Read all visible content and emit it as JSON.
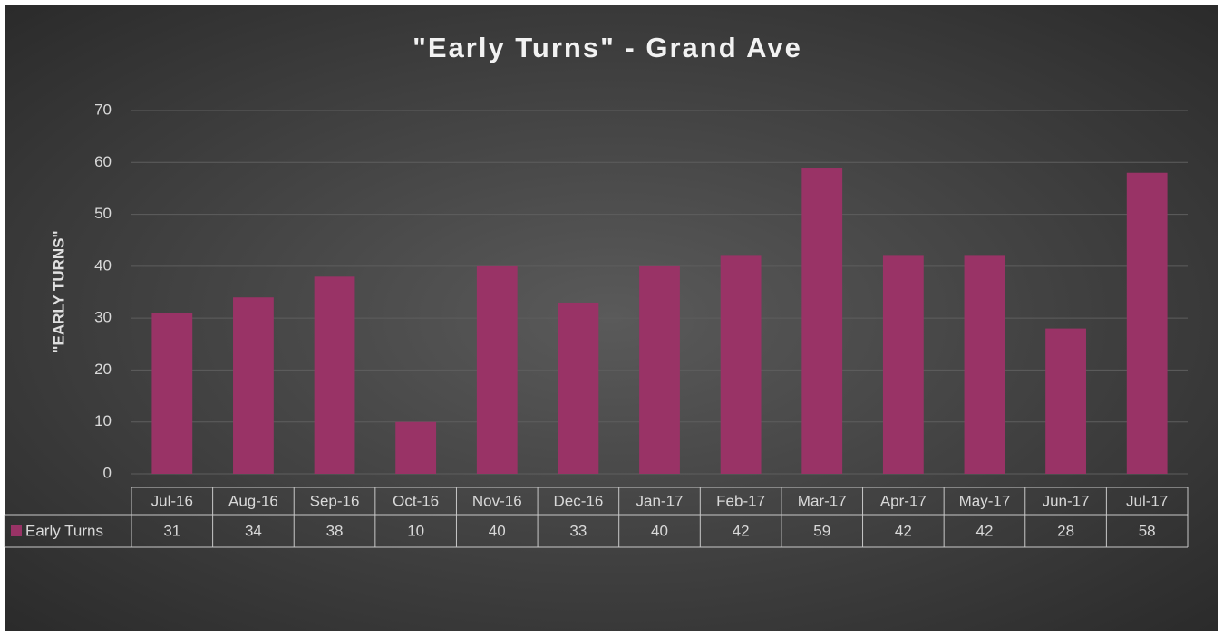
{
  "chart_data": {
    "type": "bar",
    "title": "\"Early Turns\" - Grand Ave",
    "y_label": "\"EARLY TURNS\"",
    "categories": [
      "Jul-16",
      "Aug-16",
      "Sep-16",
      "Oct-16",
      "Nov-16",
      "Dec-16",
      "Jan-17",
      "Feb-17",
      "Mar-17",
      "Apr-17",
      "May-17",
      "Jun-17",
      "Jul-17"
    ],
    "series": [
      {
        "name": "Early Turns",
        "color": "#993366",
        "values": [
          31,
          34,
          38,
          10,
          40,
          33,
          40,
          42,
          59,
          42,
          42,
          28,
          58
        ]
      }
    ],
    "ylim": [
      0,
      70
    ],
    "yticks": [
      0,
      10,
      20,
      30,
      40,
      50,
      60,
      70
    ],
    "grid": true,
    "data_table": true
  }
}
